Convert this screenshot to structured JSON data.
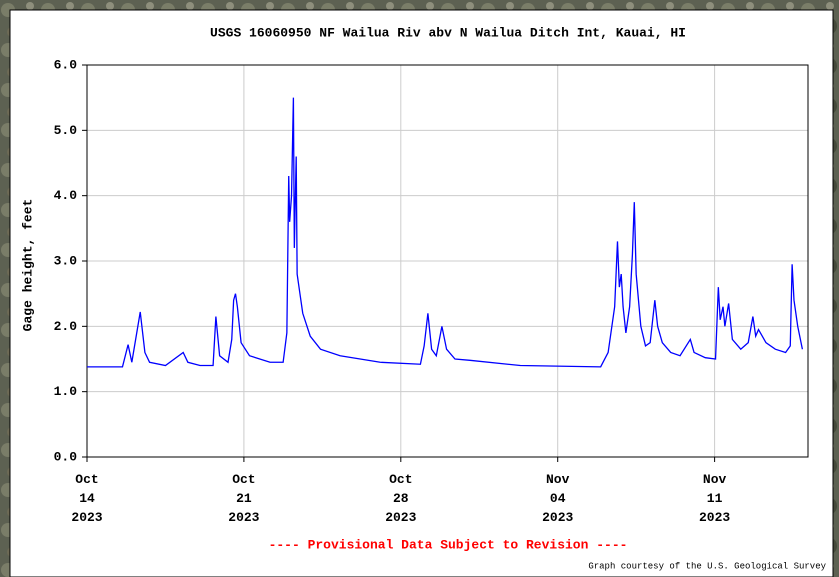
{
  "chart_data": {
    "type": "line",
    "title": "USGS 16060950 NF Wailua Riv abv N Wailua Ditch Int, Kauai, HI",
    "ylabel": "Gage height, feet",
    "annotation": "---- Provisional Data Subject to Revision ----",
    "credit": "Graph courtesy of the U.S. Geological Survey",
    "grid": true,
    "xlim": [
      "2023-10-14T00:00",
      "2023-11-15T04:00"
    ],
    "ylim": [
      0,
      6
    ],
    "yticks": [
      {
        "value": 0,
        "label": "0.0"
      },
      {
        "value": 1,
        "label": "1.0"
      },
      {
        "value": 2,
        "label": "2.0"
      },
      {
        "value": 3,
        "label": "3.0"
      },
      {
        "value": 4,
        "label": "4.0"
      },
      {
        "value": 5,
        "label": "5.0"
      },
      {
        "value": 6,
        "label": "6.0"
      }
    ],
    "xticks": [
      {
        "value": "2023-10-14T00:00",
        "label": "Oct\n14\n2023"
      },
      {
        "value": "2023-10-21T00:00",
        "label": "Oct\n21\n2023"
      },
      {
        "value": "2023-10-28T00:00",
        "label": "Oct\n28\n2023"
      },
      {
        "value": "2023-11-04T00:00",
        "label": "Nov\n04\n2023"
      },
      {
        "value": "2023-11-11T00:00",
        "label": "Nov\n11\n2023"
      }
    ],
    "x": [
      "2023-10-14T00:00",
      "2023-10-15T14:00",
      "2023-10-15T20:00",
      "2023-10-16T00:00",
      "2023-10-16T09:00",
      "2023-10-16T14:00",
      "2023-10-16T19:00",
      "2023-10-17T12:00",
      "2023-10-18T07:00",
      "2023-10-18T12:00",
      "2023-10-19T01:00",
      "2023-10-19T15:00",
      "2023-10-19T18:00",
      "2023-10-19T22:00",
      "2023-10-20T07:00",
      "2023-10-20T11:00",
      "2023-10-20T13:00",
      "2023-10-20T15:00",
      "2023-10-20T17:00",
      "2023-10-20T21:00",
      "2023-10-21T06:00",
      "2023-10-22T04:00",
      "2023-10-22T18:00",
      "2023-10-22T22:00",
      "2023-10-23T00:00",
      "2023-10-23T01:00",
      "2023-10-23T03:00",
      "2023-10-23T05:00",
      "2023-10-23T06:00",
      "2023-10-23T08:00",
      "2023-10-23T09:00",
      "2023-10-23T12:00",
      "2023-10-23T15:00",
      "2023-10-23T23:00",
      "2023-10-24T10:00",
      "2023-10-25T07:00",
      "2023-10-27T02:00",
      "2023-10-28T21:00",
      "2023-10-29T01:00",
      "2023-10-29T05:00",
      "2023-10-29T09:00",
      "2023-10-29T14:00",
      "2023-10-29T20:00",
      "2023-10-30T01:00",
      "2023-10-30T10:00",
      "2023-10-31T02:00",
      "2023-11-02T08:00",
      "2023-11-05T22:00",
      "2023-11-06T06:00",
      "2023-11-06T13:00",
      "2023-11-06T16:00",
      "2023-11-06T18:00",
      "2023-11-06T20:00",
      "2023-11-06T22:00",
      "2023-11-07T01:00",
      "2023-11-07T05:00",
      "2023-11-07T08:00",
      "2023-11-07T10:00",
      "2023-11-07T12:00",
      "2023-11-07T17:00",
      "2023-11-07T22:00",
      "2023-11-08T03:00",
      "2023-11-08T08:00",
      "2023-11-08T11:00",
      "2023-11-08T16:00",
      "2023-11-09T01:00",
      "2023-11-09T11:00",
      "2023-11-09T22:00",
      "2023-11-10T02:00",
      "2023-11-10T14:00",
      "2023-11-11T01:00",
      "2023-11-11T04:00",
      "2023-11-11T06:00",
      "2023-11-11T09:00",
      "2023-11-11T11:00",
      "2023-11-11T15:00",
      "2023-11-11T19:00",
      "2023-11-12T04:00",
      "2023-11-12T12:00",
      "2023-11-12T17:00",
      "2023-11-12T20:00",
      "2023-11-12T23:00",
      "2023-11-13T07:00",
      "2023-11-13T17:00",
      "2023-11-14T04:00",
      "2023-11-14T09:00",
      "2023-11-14T11:00",
      "2023-11-14T13:00",
      "2023-11-14T17:00",
      "2023-11-14T22:00"
    ],
    "series": [
      {
        "color": "#0000ff",
        "values": [
          1.38,
          1.38,
          1.72,
          1.45,
          2.22,
          1.6,
          1.45,
          1.4,
          1.6,
          1.45,
          1.4,
          1.4,
          2.15,
          1.55,
          1.45,
          1.8,
          2.4,
          2.5,
          2.3,
          1.75,
          1.55,
          1.45,
          1.45,
          1.9,
          4.3,
          3.6,
          4.0,
          5.5,
          3.2,
          4.6,
          2.8,
          2.5,
          2.2,
          1.85,
          1.65,
          1.55,
          1.45,
          1.42,
          1.7,
          2.2,
          1.65,
          1.55,
          2.0,
          1.65,
          1.5,
          1.48,
          1.4,
          1.38,
          1.6,
          2.3,
          3.3,
          2.6,
          2.8,
          2.3,
          1.9,
          2.3,
          3.1,
          3.9,
          2.8,
          2.0,
          1.7,
          1.75,
          2.4,
          2.0,
          1.75,
          1.6,
          1.55,
          1.8,
          1.6,
          1.52,
          1.5,
          2.6,
          2.1,
          2.3,
          2.0,
          2.35,
          1.8,
          1.65,
          1.75,
          2.15,
          1.85,
          1.95,
          1.75,
          1.65,
          1.6,
          1.7,
          2.95,
          2.4,
          2.0,
          1.65
        ]
      }
    ]
  }
}
